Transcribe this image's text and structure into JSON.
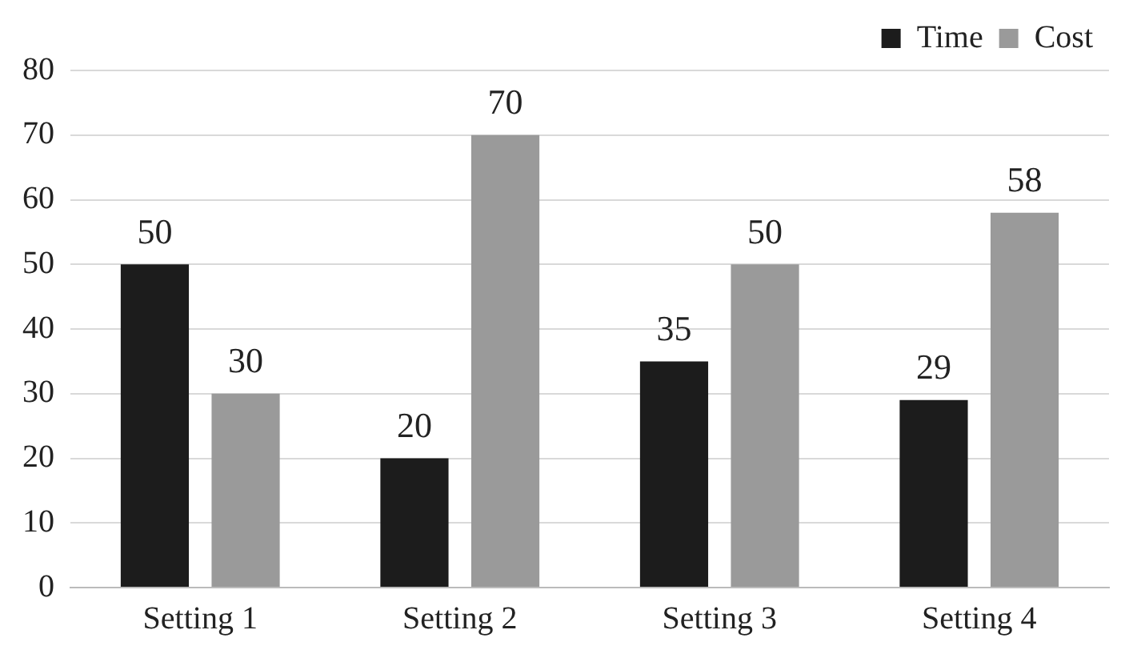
{
  "chart_data": {
    "type": "bar",
    "categories": [
      "Setting 1",
      "Setting 2",
      "Setting 3",
      "Setting 4"
    ],
    "series": [
      {
        "name": "Time",
        "color": "#1c1c1c",
        "values": [
          50,
          20,
          35,
          29
        ]
      },
      {
        "name": "Cost",
        "color": "#9a9a9a",
        "values": [
          30,
          70,
          50,
          58
        ]
      }
    ],
    "ylim": [
      0,
      80
    ],
    "yticks": [
      0,
      10,
      20,
      30,
      40,
      50,
      60,
      70,
      80
    ],
    "grid": "y",
    "legend": "top right",
    "data_labels": true
  }
}
